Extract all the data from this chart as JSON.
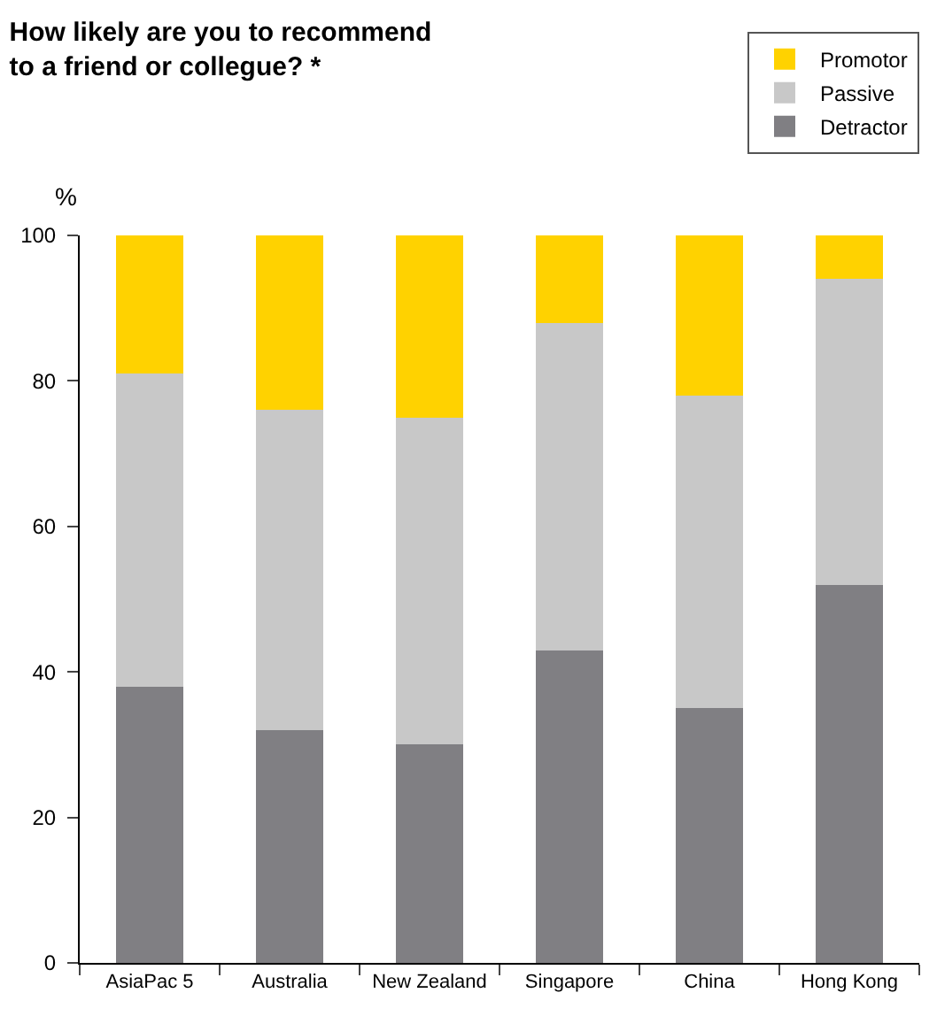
{
  "chart_data": {
    "type": "bar",
    "stacked": true,
    "title": "How likely are you to recommend to a friend or collegue? *",
    "ylabel": "%",
    "categories": [
      "AsiaPac 5",
      "Australia",
      "New Zealand",
      "Singapore",
      "China",
      "Hong Kong"
    ],
    "series": [
      {
        "name": "Detractor",
        "color": "#807f83",
        "values": [
          38,
          32,
          30,
          43,
          35,
          52
        ]
      },
      {
        "name": "Passive",
        "color": "#c8c8c8",
        "values": [
          43,
          44,
          45,
          45,
          43,
          42
        ]
      },
      {
        "name": "Promotor",
        "color": "#ffd200",
        "values": [
          19,
          24,
          25,
          12,
          22,
          6
        ]
      }
    ],
    "ylim": [
      0,
      100
    ],
    "yticks": [
      0,
      20,
      40,
      60,
      80,
      100
    ],
    "grid": false,
    "legend": "top right"
  }
}
